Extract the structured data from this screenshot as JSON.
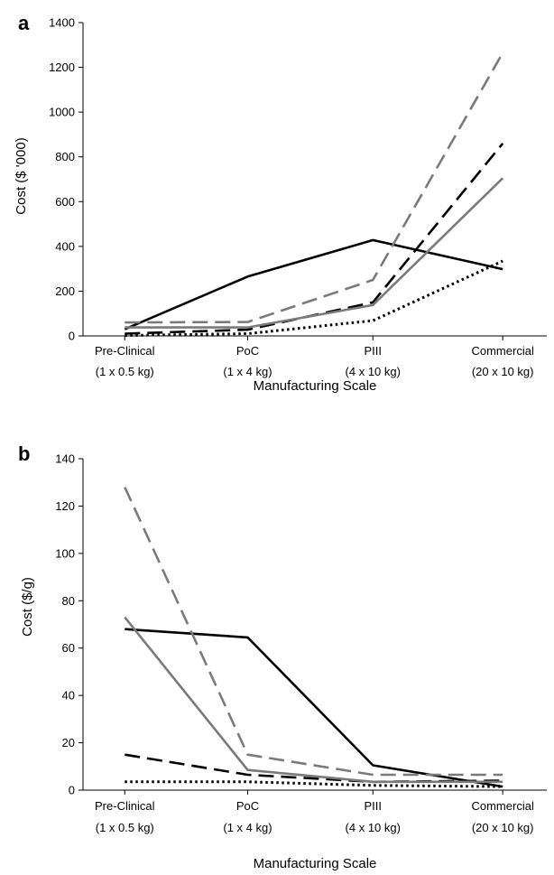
{
  "chart_data": [
    {
      "type": "line",
      "panel": "a",
      "categories": [
        "Pre-Clinical",
        "PoC",
        "PIII",
        "Commercial"
      ],
      "category_sublabels": [
        "(1 x 0.5 kg)",
        "(1 x 4 kg)",
        "(4 x 10 kg)",
        "(20 x 10 kg)"
      ],
      "xlabel": "Manufacturing Scale",
      "ylabel": "Cost ($ '000)",
      "ylim": [
        0,
        1400
      ],
      "yticks": [
        0,
        200,
        400,
        600,
        800,
        1000,
        1200,
        1400
      ],
      "series": [
        {
          "values": [
            30,
            265,
            428,
            298
          ],
          "color": "#000000",
          "dash": "solid"
        },
        {
          "values": [
            60,
            62,
            250,
            1265
          ],
          "color": "#7a7a7a",
          "dash": "dashed"
        },
        {
          "values": [
            10,
            28,
            150,
            860
          ],
          "color": "#000000",
          "dash": "dashed"
        },
        {
          "values": [
            38,
            38,
            138,
            705
          ],
          "color": "#7a7a7a",
          "dash": "solid"
        },
        {
          "values": [
            2,
            10,
            68,
            335
          ],
          "color": "#000000",
          "dash": "dotted"
        }
      ]
    },
    {
      "type": "line",
      "panel": "b",
      "categories": [
        "Pre-Clinical",
        "PoC",
        "PIII",
        "Commercial"
      ],
      "category_sublabels": [
        "(1 x 0.5 kg)",
        "(1 x 4 kg)",
        "(4 x 10 kg)",
        "(20 x 10 kg)"
      ],
      "xlabel": "Manufacturing Scale",
      "ylabel": "Cost ($/g)",
      "ylim": [
        0,
        140
      ],
      "yticks": [
        0,
        20,
        40,
        60,
        80,
        100,
        120,
        140
      ],
      "series": [
        {
          "values": [
            68,
            64.5,
            10.5,
            1.5
          ],
          "color": "#000000",
          "dash": "solid"
        },
        {
          "values": [
            128,
            15,
            6.5,
            6.5
          ],
          "color": "#7a7a7a",
          "dash": "dashed"
        },
        {
          "values": [
            15,
            6.5,
            3.5,
            4
          ],
          "color": "#000000",
          "dash": "dashed"
        },
        {
          "values": [
            73,
            8.5,
            3.5,
            3.5
          ],
          "color": "#7a7a7a",
          "dash": "solid"
        },
        {
          "values": [
            3.5,
            3.5,
            2,
            1.5
          ],
          "color": "#000000",
          "dash": "dotted"
        }
      ]
    }
  ]
}
